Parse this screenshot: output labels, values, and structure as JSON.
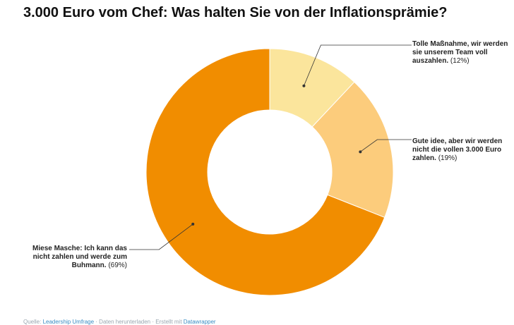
{
  "chart_data": {
    "type": "pie",
    "title": "3.000 Euro vom Chef: Was halten Sie von der Inflationsprämie?",
    "categories": [
      "Tolle Maßnahme, wir werden sie unserem Team voll auszahlen.",
      "Gute idee, aber wir werden nicht die vollen 3.000 Euro zahlen.",
      "Miese Masche: Ich kann das nicht zahlen und werde zum Buhmann."
    ],
    "values": [
      12,
      19,
      69
    ],
    "value_labels": [
      "(12%)",
      "(19%)",
      "(69%)"
    ],
    "colors": [
      "#fbe59c",
      "#fccc7c",
      "#f18d00"
    ],
    "donut": true
  },
  "footer": {
    "prefix": "Quelle: ",
    "source": "Leadership Umfrage",
    "middle": " · Daten herunterladen · Erstellt mit ",
    "tool": "Datawrapper"
  }
}
